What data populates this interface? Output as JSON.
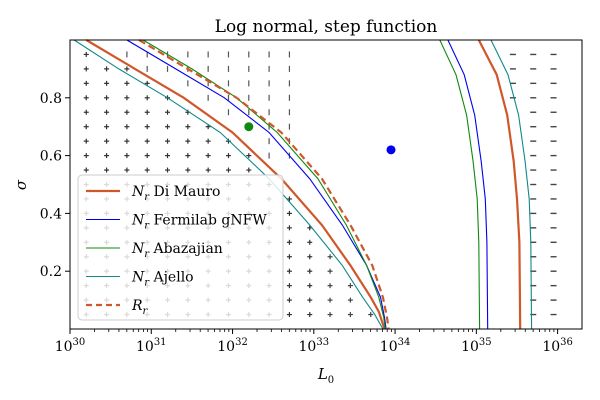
{
  "chart_data": {
    "type": "line",
    "title": "Log normal, step function",
    "xlabel": "L",
    "xlabel_sub": "0",
    "ylabel": "σ",
    "xscale": "log",
    "xlim_log10": [
      30,
      36.3
    ],
    "ylim": [
      0,
      1.0
    ],
    "grid": false,
    "legend_position": "lower-left",
    "x_ticks": [
      {
        "base": "10",
        "exp": "30",
        "log10": 30
      },
      {
        "base": "10",
        "exp": "31",
        "log10": 31
      },
      {
        "base": "10",
        "exp": "32",
        "log10": 32
      },
      {
        "base": "10",
        "exp": "33",
        "log10": 33
      },
      {
        "base": "10",
        "exp": "34",
        "log10": 34
      },
      {
        "base": "10",
        "exp": "35",
        "log10": 35
      },
      {
        "base": "10",
        "exp": "36",
        "log10": 36
      }
    ],
    "y_ticks": [
      "0.2",
      "0.4",
      "0.6",
      "0.8"
    ],
    "series": [
      {
        "name": "N",
        "sub": "r",
        "suffix": "Di Mauro",
        "color": "#d0572a",
        "width": 2.2,
        "dash": "",
        "inner": [
          [
            30.2,
            1.0
          ],
          [
            30.8,
            0.9
          ],
          [
            31.4,
            0.8
          ],
          [
            32.0,
            0.68
          ],
          [
            32.6,
            0.52
          ],
          [
            33.1,
            0.36
          ],
          [
            33.45,
            0.22
          ],
          [
            33.7,
            0.11
          ],
          [
            33.8,
            0.06
          ],
          [
            33.87,
            0.0
          ]
        ],
        "outer": [
          [
            35.03,
            1.0
          ],
          [
            35.25,
            0.88
          ],
          [
            35.38,
            0.74
          ],
          [
            35.46,
            0.58
          ],
          [
            35.5,
            0.45
          ],
          [
            35.53,
            0.3
          ],
          [
            35.54,
            0.0
          ]
        ]
      },
      {
        "name": "N",
        "sub": "r",
        "suffix": "Fermilab gNFW",
        "color": "#0000ee",
        "width": 1.1,
        "dash": "",
        "inner": [
          [
            30.7,
            1.0
          ],
          [
            31.3,
            0.9
          ],
          [
            31.9,
            0.8
          ],
          [
            32.45,
            0.68
          ],
          [
            32.95,
            0.52
          ],
          [
            33.35,
            0.36
          ],
          [
            33.65,
            0.22
          ],
          [
            33.82,
            0.11
          ],
          [
            33.87,
            0.04
          ],
          [
            33.89,
            0.0
          ]
        ],
        "outer": [
          [
            34.65,
            1.0
          ],
          [
            34.85,
            0.88
          ],
          [
            34.98,
            0.74
          ],
          [
            35.06,
            0.58
          ],
          [
            35.11,
            0.45
          ],
          [
            35.13,
            0.3
          ],
          [
            35.14,
            0.0
          ]
        ]
      },
      {
        "name": "N",
        "sub": "r",
        "suffix": "Abazajian",
        "color": "#118811",
        "width": 1.1,
        "dash": "",
        "inner": [
          [
            30.9,
            1.0
          ],
          [
            31.5,
            0.9
          ],
          [
            32.05,
            0.8
          ],
          [
            32.55,
            0.68
          ],
          [
            33.05,
            0.52
          ],
          [
            33.4,
            0.36
          ],
          [
            33.65,
            0.22
          ],
          [
            33.8,
            0.11
          ],
          [
            33.86,
            0.04
          ],
          [
            33.88,
            0.0
          ]
        ],
        "outer": [
          [
            34.55,
            1.0
          ],
          [
            34.75,
            0.88
          ],
          [
            34.88,
            0.74
          ],
          [
            34.96,
            0.58
          ],
          [
            35.01,
            0.45
          ],
          [
            35.03,
            0.3
          ],
          [
            35.04,
            0.0
          ]
        ]
      },
      {
        "name": "N",
        "sub": "r",
        "suffix": "Ajello",
        "color": "#118888",
        "width": 1.1,
        "dash": "",
        "inner": [
          [
            30.05,
            1.0
          ],
          [
            30.6,
            0.9
          ],
          [
            31.2,
            0.8
          ],
          [
            31.85,
            0.68
          ],
          [
            32.45,
            0.52
          ],
          [
            32.95,
            0.36
          ],
          [
            33.35,
            0.22
          ],
          [
            33.6,
            0.11
          ],
          [
            33.75,
            0.05
          ],
          [
            33.85,
            0.0
          ]
        ],
        "outer": [
          [
            35.18,
            1.0
          ],
          [
            35.39,
            0.88
          ],
          [
            35.52,
            0.74
          ],
          [
            35.6,
            0.58
          ],
          [
            35.65,
            0.45
          ],
          [
            35.67,
            0.3
          ],
          [
            35.68,
            0.0
          ]
        ]
      },
      {
        "name": "R",
        "sub": "r",
        "suffix": "",
        "color": "#d0572a",
        "width": 2.2,
        "dash": "7,4",
        "inner": [
          [
            30.85,
            1.0
          ],
          [
            31.45,
            0.9
          ],
          [
            32.05,
            0.8
          ],
          [
            32.6,
            0.68
          ],
          [
            33.1,
            0.52
          ],
          [
            33.45,
            0.36
          ],
          [
            33.72,
            0.22
          ],
          [
            33.85,
            0.11
          ],
          [
            33.9,
            0.04
          ],
          [
            33.92,
            0.0
          ]
        ],
        "outer": []
      }
    ],
    "points": [
      {
        "name": "blue-point",
        "log10x": 33.95,
        "y": 0.62,
        "color": "#0000ee"
      },
      {
        "name": "green-point",
        "log10x": 32.2,
        "y": 0.7,
        "color": "#118811"
      }
    ]
  }
}
